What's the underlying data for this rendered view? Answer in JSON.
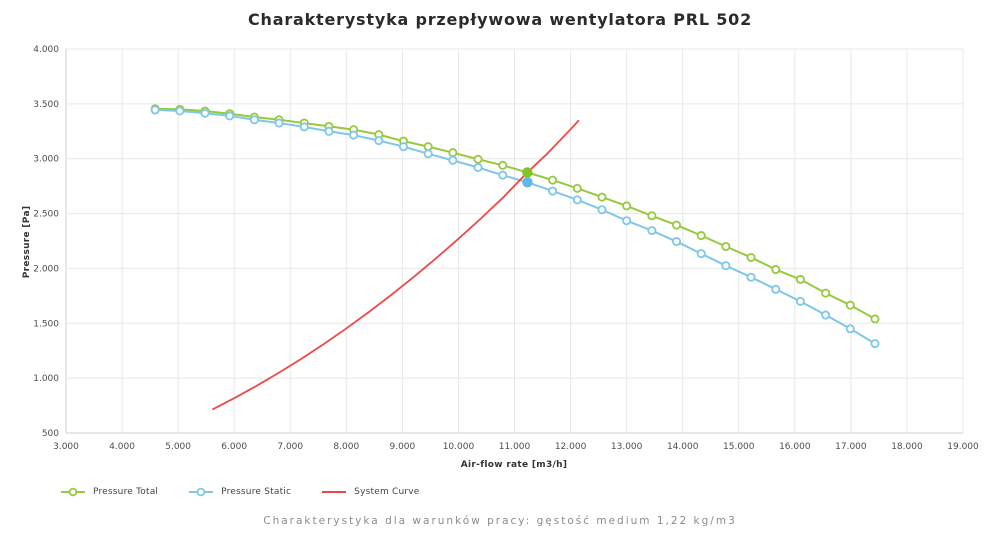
{
  "title": "Charakterystyka przepływowa wentylatora PRL 502",
  "footer_caption": "Charakterystyka dla warunków pracy: gęstość medium 1,22 kg/m3",
  "colors": {
    "pressure_total": "#97c93d",
    "pressure_static": "#7ec7e8",
    "system_curve": "#ef4848",
    "operating_point_total": "#85c226",
    "operating_point_static": "#5fb8e6",
    "grid": "#e8e8e8",
    "axis": "#cfcfcf",
    "tick_text": "#4d4d4d"
  },
  "chart_data": {
    "type": "line",
    "title": "Charakterystyka przepływowa wentylatora PRL 502",
    "xlabel": "Air-flow rate [m3/h]",
    "ylabel": "Pressure [Pa]",
    "xlim": [
      3000,
      19000
    ],
    "ylim": [
      500,
      4000
    ],
    "grid": true,
    "legend_position": "bottom-left",
    "x_ticks": {
      "values": [
        3000,
        4000,
        5000,
        6000,
        7000,
        8000,
        9000,
        10000,
        11000,
        12000,
        13000,
        14000,
        15000,
        16000,
        17000,
        18000,
        19000
      ],
      "labels": [
        "3.000",
        "4.000",
        "5.000",
        "6.000",
        "7.000",
        "8.000",
        "9.000",
        "10.000",
        "11.000",
        "12.000",
        "13.000",
        "14.000",
        "15.000",
        "16.000",
        "17.000",
        "18.000",
        "19.000"
      ]
    },
    "y_ticks": {
      "values": [
        4000,
        3500,
        3000,
        2500,
        2000,
        1500,
        1000,
        500
      ],
      "labels": [
        "4.000",
        "3.500",
        "3.000",
        "2.500",
        "2.000",
        "1.500",
        "1.000",
        "500"
      ]
    },
    "series": [
      {
        "name": "Pressure Total",
        "color": "#97c93d",
        "marker": "circle-hollow",
        "x": [
          4590,
          5030,
          5480,
          5920,
          6360,
          6800,
          7250,
          7690,
          8130,
          8580,
          9020,
          9460,
          9900,
          10350,
          10790,
          11230,
          11680,
          12120,
          12560,
          13000,
          13450,
          13890,
          14330,
          14770,
          15220,
          15660,
          16100,
          16550,
          16990,
          17430
        ],
        "y": [
          3455,
          3450,
          3435,
          3410,
          3380,
          3355,
          3325,
          3295,
          3265,
          3220,
          3160,
          3110,
          3055,
          2995,
          2940,
          2875,
          2805,
          2730,
          2650,
          2570,
          2480,
          2395,
          2300,
          2200,
          2100,
          1990,
          1900,
          1775,
          1665,
          1540
        ]
      },
      {
        "name": "Pressure Static",
        "color": "#7ec7e8",
        "marker": "circle-hollow",
        "x": [
          4590,
          5030,
          5480,
          5920,
          6360,
          6800,
          7250,
          7690,
          8130,
          8580,
          9020,
          9460,
          9900,
          10350,
          10790,
          11230,
          11680,
          12120,
          12560,
          13000,
          13450,
          13890,
          14330,
          14770,
          15220,
          15660,
          16100,
          16550,
          16990,
          17430
        ],
        "y": [
          3445,
          3435,
          3415,
          3390,
          3355,
          3325,
          3290,
          3250,
          3215,
          3165,
          3110,
          3045,
          2985,
          2920,
          2850,
          2785,
          2705,
          2625,
          2535,
          2435,
          2345,
          2245,
          2135,
          2025,
          1920,
          1810,
          1700,
          1575,
          1450,
          1315
        ]
      },
      {
        "name": "System Curve",
        "color": "#ef4848",
        "marker": "none",
        "x": [
          5610,
          6000,
          6400,
          6800,
          7200,
          7600,
          8000,
          8400,
          8800,
          9200,
          9600,
          10000,
          10400,
          10800,
          11230,
          11600,
          12000,
          12150
        ],
        "y": [
          714,
          817,
          930,
          1050,
          1177,
          1311,
          1453,
          1602,
          1758,
          1921,
          2092,
          2270,
          2455,
          2648,
          2875,
          3054,
          3268,
          3351
        ]
      }
    ],
    "operating_points": [
      {
        "series": "Pressure Total",
        "x": 11230,
        "y": 2875,
        "color": "#85c226"
      },
      {
        "series": "Pressure Static",
        "x": 11230,
        "y": 2785,
        "color": "#5fb8e6"
      }
    ]
  }
}
